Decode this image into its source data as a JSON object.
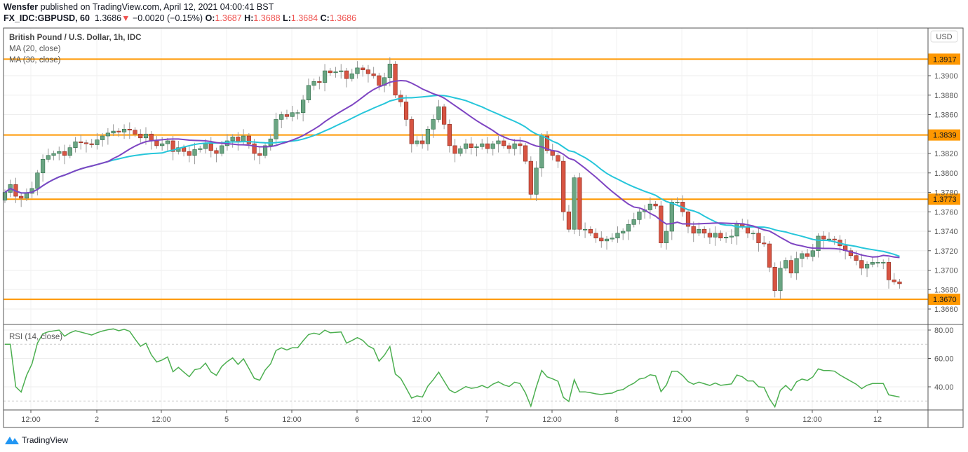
{
  "header": {
    "author": "Wensfer",
    "published_text": "published on TradingView.com, April 12, 2021 04:00:41 BST",
    "symbol": "FX_IDC:GBPUSD, 60",
    "last": "1.3686",
    "change": "−0.0020 (−0.15%)",
    "ohlc": {
      "o_label": "O:",
      "o": "1.3687",
      "h_label": "H:",
      "h": "1.3688",
      "l_label": "L:",
      "l": "1.3684",
      "c_label": "C:",
      "c": "1.3686"
    },
    "direction_icon": "triangle-down-icon"
  },
  "legend": {
    "title": "British Pound / U.S. Dollar, 1h, IDC",
    "ma20": "MA (20, close)",
    "ma30": "MA (30, close)",
    "rsi": "RSI (14, close)"
  },
  "currency": "USD",
  "colors": {
    "up": "#6ba583",
    "down": "#d75442",
    "ma20": "#7e45c2",
    "ma30": "#26c6da",
    "level": "#ff9800",
    "rsi": "#4caf50"
  },
  "footer": {
    "brand": "TradingView"
  },
  "chart_data": {
    "type": "candlestick",
    "price_ticks": [
      "1.3900",
      "1.3880",
      "1.3860",
      "1.3820",
      "1.3800",
      "1.3780",
      "1.3760",
      "1.3740",
      "1.3720",
      "1.3700",
      "1.3680",
      "1.3660"
    ],
    "ylim": [
      1.3648,
      1.3945
    ],
    "levels": [
      "1.3917",
      "1.3839",
      "1.3773",
      "1.3670"
    ],
    "x_ticks": [
      "12:00",
      "2",
      "12:00",
      "5",
      "12:00",
      "6",
      "12:00",
      "7",
      "12:00",
      "8",
      "12:00",
      "9",
      "12:00",
      "12"
    ],
    "rsi_ticks": [
      "80.00",
      "60.00",
      "40.00"
    ],
    "rsi_bands": [
      70,
      30
    ],
    "closes": [
      1.378,
      1.3788,
      1.3776,
      1.3774,
      1.3779,
      1.3784,
      1.38,
      1.3814,
      1.3818,
      1.382,
      1.3822,
      1.3818,
      1.3826,
      1.3832,
      1.3831,
      1.383,
      1.3829,
      1.3834,
      1.3838,
      1.3841,
      1.3843,
      1.3842,
      1.3845,
      1.3844,
      1.384,
      1.3836,
      1.384,
      1.3833,
      1.3828,
      1.383,
      1.3833,
      1.3822,
      1.3826,
      1.3822,
      1.3818,
      1.3824,
      1.3825,
      1.383,
      1.3823,
      1.382,
      1.3828,
      1.3833,
      1.3837,
      1.3832,
      1.3838,
      1.383,
      1.382,
      1.3818,
      1.3828,
      1.3835,
      1.3855,
      1.386,
      1.3858,
      1.3862,
      1.3862,
      1.3875,
      1.389,
      1.3894,
      1.3893,
      1.3905,
      1.3903,
      1.3904,
      1.3905,
      1.3897,
      1.3902,
      1.3908,
      1.3906,
      1.3902,
      1.39,
      1.389,
      1.3898,
      1.3912,
      1.388,
      1.3873,
      1.3855,
      1.383,
      1.3833,
      1.383,
      1.3845,
      1.3855,
      1.3868,
      1.385,
      1.3828,
      1.382,
      1.3825,
      1.383,
      1.3826,
      1.3827,
      1.383,
      1.3825,
      1.383,
      1.3833,
      1.3828,
      1.3825,
      1.383,
      1.3828,
      1.3812,
      1.3778,
      1.3805,
      1.3838,
      1.3823,
      1.3818,
      1.3812,
      1.376,
      1.3742,
      1.3795,
      1.3742,
      1.3742,
      1.3738,
      1.3733,
      1.373,
      1.3732,
      1.3733,
      1.3738,
      1.374,
      1.3747,
      1.3752,
      1.376,
      1.3762,
      1.3768,
      1.3766,
      1.3728,
      1.374,
      1.377,
      1.377,
      1.376,
      1.3745,
      1.3738,
      1.3742,
      1.3738,
      1.3734,
      1.3738,
      1.3733,
      1.3734,
      1.3735,
      1.3748,
      1.3745,
      1.3738,
      1.3738,
      1.3728,
      1.3727,
      1.3703,
      1.3679,
      1.3702,
      1.371,
      1.3697,
      1.3712,
      1.3717,
      1.3714,
      1.372,
      1.3735,
      1.3732,
      1.3732,
      1.3731,
      1.3725,
      1.372,
      1.3715,
      1.371,
      1.3702,
      1.3706,
      1.3708,
      1.3708,
      1.3708,
      1.369,
      1.3688,
      1.3686
    ]
  }
}
